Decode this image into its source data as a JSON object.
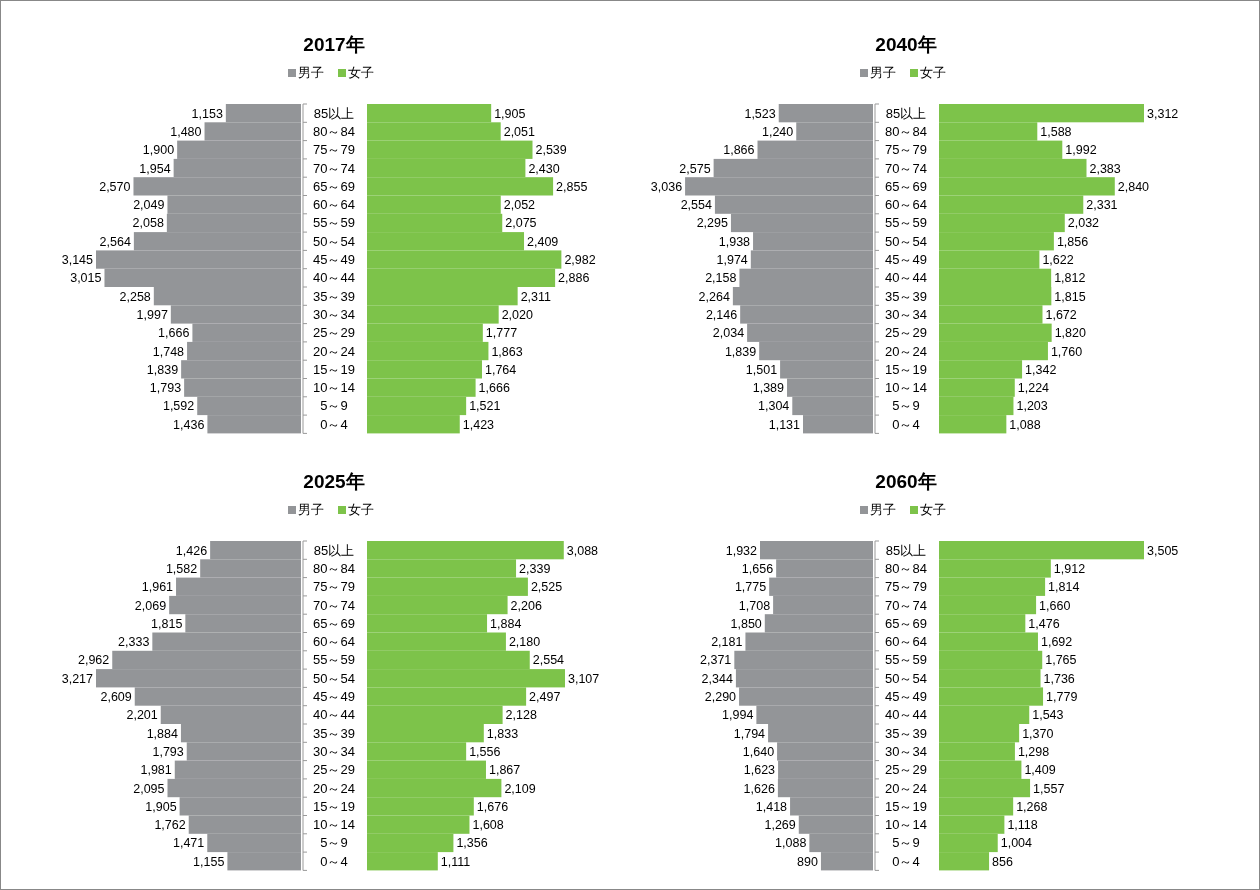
{
  "chart_data": [
    {
      "type": "bar",
      "orientation": "horizontal",
      "title": "2017年",
      "legend": "top",
      "categories": [
        "85以上",
        "80～84",
        "75～79",
        "70～74",
        "65～69",
        "60～64",
        "55～59",
        "50～54",
        "45～49",
        "40～44",
        "35～39",
        "30～34",
        "25～29",
        "20～24",
        "15～19",
        "10～14",
        "5～9",
        "0～4"
      ],
      "series": [
        {
          "name": "男子",
          "color": "#939598",
          "values": [
            1153,
            1480,
            1900,
            1954,
            2570,
            2049,
            2058,
            2564,
            3145,
            3015,
            2258,
            1997,
            1666,
            1748,
            1839,
            1793,
            1592,
            1436
          ],
          "value_labels": [
            "1,153",
            "1,480",
            "1,900",
            "1,954",
            "2,570",
            "2,049",
            "2,058",
            "2,564",
            "3,145",
            "3,015",
            "2,258",
            "1,997",
            "1,666",
            "1,748",
            "1,839",
            "1,793",
            "1,592",
            "1,436"
          ]
        }
      ]
    },
    {
      "type": "bar",
      "orientation": "horizontal",
      "legend": "top",
      "tick_labels": false,
      "categories": [
        null,
        null,
        null,
        null,
        null,
        null,
        null,
        null,
        null,
        null,
        null,
        null,
        null,
        null,
        null,
        null,
        null,
        null
      ],
      "series": [
        {
          "name": "女子",
          "color": "#7dc34a",
          "values": [
            1905,
            2051,
            2539,
            2430,
            2855,
            2052,
            2075,
            2409,
            2982,
            2886,
            2311,
            2020,
            1777,
            1863,
            1764,
            1666,
            1521,
            1423
          ],
          "value_labels": [
            "1,905",
            "2,051",
            "2,539",
            "2,430",
            "2,855",
            "2,052",
            "2,075",
            "2,409",
            "2,982",
            "2,886",
            "2,311",
            "2,020",
            "1,777",
            "1,863",
            "1,764",
            "1,666",
            "1,521",
            "1,423"
          ]
        }
      ]
    },
    {
      "type": "bar",
      "orientation": "horizontal",
      "title": "2040年",
      "legend": "top",
      "categories": [
        "85以上",
        "80～84",
        "75～79",
        "70～74",
        "65～69",
        "60～64",
        "55～59",
        "50～54",
        "45～49",
        "40～44",
        "35～39",
        "30～34",
        "25～29",
        "20～24",
        "15～19",
        "10～14",
        "5～9",
        "0～4"
      ],
      "series": [
        {
          "name": "男子",
          "color": "#939598",
          "values": [
            1523,
            1240,
            1866,
            2575,
            3036,
            2554,
            2295,
            1938,
            1974,
            2158,
            2264,
            2146,
            2034,
            1839,
            1501,
            1389,
            1304,
            1131
          ],
          "value_labels": [
            "1,523",
            "1,240",
            "1,866",
            "2,575",
            "3,036",
            "2,554",
            "2,295",
            "1,938",
            "1,974",
            "2,158",
            "2,264",
            "2,146",
            "2,034",
            "1,839",
            "1,501",
            "1,389",
            "1,304",
            "1,131"
          ]
        }
      ]
    },
    {
      "type": "bar",
      "orientation": "horizontal",
      "legend": "top",
      "tick_labels": false,
      "categories": [
        null,
        null,
        null,
        null,
        null,
        null,
        null,
        null,
        null,
        null,
        null,
        null,
        null,
        null,
        null,
        null,
        null,
        null
      ],
      "series": [
        {
          "name": "女子",
          "color": "#7dc34a",
          "values": [
            3312,
            1588,
            1992,
            2383,
            2840,
            2331,
            2032,
            1856,
            1622,
            1812,
            1815,
            1672,
            1820,
            1760,
            1342,
            1224,
            1203,
            1088
          ],
          "value_labels": [
            "3,312",
            "1,588",
            "1,992",
            "2,383",
            "2,840",
            "2,331",
            "2,032",
            "1,856",
            "1,622",
            "1,812",
            "1,815",
            "1,672",
            "1,820",
            "1,760",
            "1,342",
            "1,224",
            "1,203",
            "1,088"
          ]
        }
      ]
    },
    {
      "type": "bar",
      "orientation": "horizontal",
      "title": "2025年",
      "legend": "top",
      "categories": [
        "85以上",
        "80～84",
        "75～79",
        "70～74",
        "65～69",
        "60～64",
        "55～59",
        "50～54",
        "45～49",
        "40～44",
        "35～39",
        "30～34",
        "25～29",
        "20～24",
        "15～19",
        "10～14",
        "5～9",
        "0～4"
      ],
      "series": [
        {
          "name": "男子",
          "color": "#939598",
          "values": [
            1426,
            1582,
            1961,
            2069,
            1815,
            2333,
            2962,
            3217,
            2609,
            2201,
            1884,
            1793,
            1981,
            2095,
            1905,
            1762,
            1471,
            1155
          ],
          "value_labels": [
            "1,426",
            "1,582",
            "1,961",
            "2,069",
            "1,815",
            "2,333",
            "2,962",
            "3,217",
            "2,609",
            "2,201",
            "1,884",
            "1,793",
            "1,981",
            "2,095",
            "1,905",
            "1,762",
            "1,471",
            "1,155"
          ]
        }
      ]
    },
    {
      "type": "bar",
      "orientation": "horizontal",
      "legend": "top",
      "tick_labels": false,
      "categories": [
        null,
        null,
        null,
        null,
        null,
        null,
        null,
        null,
        null,
        null,
        null,
        null,
        null,
        null,
        null,
        null,
        null,
        null
      ],
      "series": [
        {
          "name": "女子",
          "color": "#7dc34a",
          "values": [
            3088,
            2339,
            2525,
            2206,
            1884,
            2180,
            2554,
            3107,
            2497,
            2128,
            1833,
            1556,
            1867,
            2109,
            1676,
            1608,
            1356,
            1111
          ],
          "value_labels": [
            "3,088",
            "2,339",
            "2,525",
            "2,206",
            "1,884",
            "2,180",
            "2,554",
            "3,107",
            "2,497",
            "2,128",
            "1,833",
            "1,556",
            "1,867",
            "2,109",
            "1,676",
            "1,608",
            "1,356",
            "1,111"
          ]
        }
      ]
    },
    {
      "type": "bar",
      "orientation": "horizontal",
      "title": "2060年",
      "legend": "top",
      "categories": [
        "85以上",
        "80～84",
        "75～79",
        "70～74",
        "65～69",
        "60～64",
        "55～59",
        "50～54",
        "45～49",
        "40～44",
        "35～39",
        "30～34",
        "25～29",
        "20～24",
        "15～19",
        "10～14",
        "5～9",
        "0～4"
      ],
      "series": [
        {
          "name": "男子",
          "color": "#939598",
          "values": [
            1932,
            1656,
            1775,
            1708,
            1850,
            2181,
            2371,
            2344,
            2290,
            1994,
            1794,
            1640,
            1623,
            1626,
            1418,
            1269,
            1088,
            890
          ],
          "value_labels": [
            "1,932",
            "1,656",
            "1,775",
            "1,708",
            "1,850",
            "2,181",
            "2,371",
            "2,344",
            "2,290",
            "1,994",
            "1,794",
            "1,640",
            "1,623",
            "1,626",
            "1,418",
            "1,269",
            "1,088",
            "890"
          ]
        }
      ]
    },
    {
      "type": "bar",
      "orientation": "horizontal",
      "legend": "top",
      "tick_labels": false,
      "categories": [
        null,
        null,
        null,
        null,
        null,
        null,
        null,
        null,
        null,
        null,
        null,
        null,
        null,
        null,
        null,
        null,
        null,
        null
      ],
      "series": [
        {
          "name": "女子",
          "color": "#7dc34a",
          "values": [
            3505,
            1912,
            1814,
            1660,
            1476,
            1692,
            1765,
            1736,
            1779,
            1543,
            1370,
            1298,
            1409,
            1557,
            1268,
            1118,
            1004,
            856
          ],
          "value_labels": [
            "3,505",
            "1,912",
            "1,814",
            "1,660",
            "1,476",
            "1,692",
            "1,765",
            "1,736",
            "1,779",
            "1,543",
            "1,370",
            "1,298",
            "1,409",
            "1,557",
            "1,268",
            "1,118",
            "1,004",
            "856"
          ]
        }
      ]
    }
  ]
}
